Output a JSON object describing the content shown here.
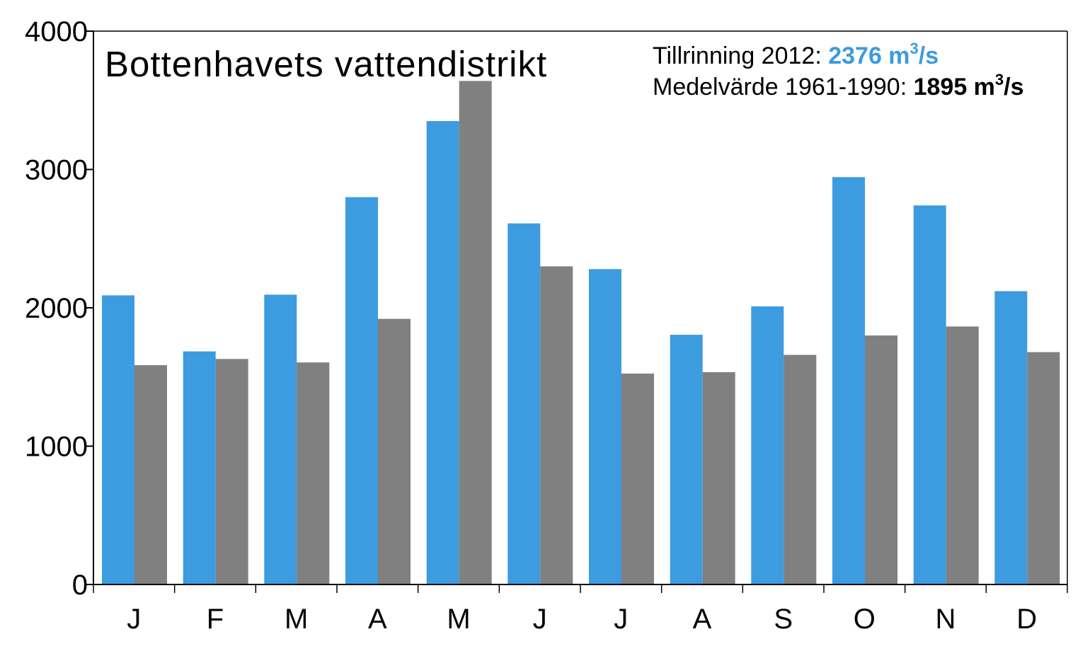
{
  "chart_data": {
    "type": "bar",
    "title": "Bottenhavets vattendistrikt",
    "categories": [
      "J",
      "F",
      "M",
      "A",
      "M",
      "J",
      "J",
      "A",
      "S",
      "O",
      "N",
      "D"
    ],
    "series": [
      {
        "name": "Tillrinning 2012",
        "color": "#3d9be0",
        "values": [
          2090,
          1685,
          2095,
          2800,
          3350,
          2610,
          2280,
          1805,
          2010,
          2945,
          2740,
          2120
        ]
      },
      {
        "name": "Medelvärde 1961-1990",
        "color": "#808080",
        "values": [
          1585,
          1630,
          1605,
          1920,
          3640,
          2300,
          1525,
          1535,
          1660,
          1800,
          1865,
          1680
        ]
      }
    ],
    "ylim": [
      0,
      4000
    ],
    "yticks": [
      0,
      1000,
      2000,
      3000,
      4000
    ],
    "xlabel": "",
    "ylabel": "",
    "grid": false,
    "legend": {
      "placement": "top-right",
      "line1_label": "Tillrinning 2012: ",
      "line1_value": "2376 m",
      "line1_sup": "3",
      "line1_tail": "/s",
      "line1_color": "#3d9be0",
      "line2_label": "Medelvärde 1961-1990: ",
      "line2_value": "1895 m",
      "line2_sup": "3",
      "line2_tail": "/s"
    }
  }
}
